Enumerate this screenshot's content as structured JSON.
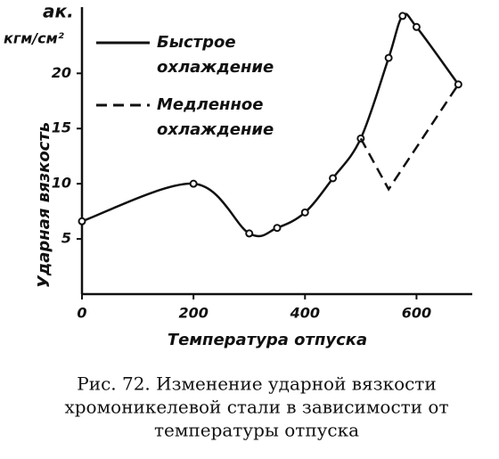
{
  "chart_data": {
    "type": "line",
    "y_unit_symbol": "aк.",
    "y_unit": "кгм/см²",
    "ylabel": "Ударная вязкость",
    "xlabel": "Температура отпуска",
    "caption": [
      "Рис. 72. Изменение ударной вязкости",
      "хромоникелевой стали в зависимости от",
      "температуры отпуска"
    ],
    "xlim": [
      0,
      700
    ],
    "ylim": [
      0,
      26
    ],
    "xticks": [
      0,
      200,
      400,
      600
    ],
    "yticks": [
      5,
      10,
      15,
      20
    ],
    "series": [
      {
        "name": "Быстрое охлаждение",
        "color": "#111111",
        "dash": false,
        "x": [
          0,
          200,
          300,
          350,
          400,
          450,
          500,
          550,
          575,
          600,
          675
        ],
        "values": [
          6.6,
          10,
          5.5,
          6,
          7.4,
          10.5,
          14.1,
          21.4,
          25.2,
          24.2,
          19
        ]
      },
      {
        "name": "Медленное охлаждение",
        "color": "#111111",
        "dash": true,
        "x": [
          500,
          550,
          675
        ],
        "values": [
          14.1,
          9.5,
          19
        ]
      }
    ]
  }
}
